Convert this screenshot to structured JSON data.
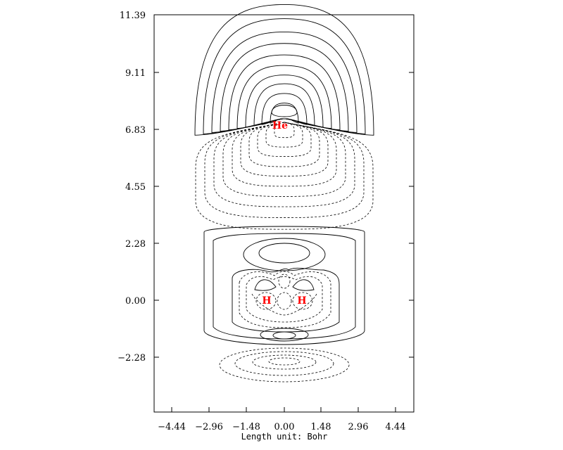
{
  "figure": {
    "x_axis_label": "Length unit: Bohr",
    "x_ticks": [
      "−4.44",
      "−2.96",
      "−1.48",
      "0.00",
      "1.48",
      "2.96",
      "4.44"
    ],
    "y_ticks": [
      "11.39",
      "9.11",
      "6.83",
      "4.55",
      "2.28",
      "0.00",
      "−2.28"
    ],
    "atoms": [
      {
        "label": "He",
        "x": 0.0,
        "y": 7.0
      },
      {
        "label": "H",
        "x": -0.7,
        "y": 0.0
      },
      {
        "label": "H",
        "x": 0.7,
        "y": 0.0
      }
    ],
    "contour_styles": {
      "positive": "solid",
      "negative": "dashed"
    },
    "colors": {
      "atom_label": "#ff0000",
      "contour": "#000000",
      "frame": "#000000"
    }
  }
}
